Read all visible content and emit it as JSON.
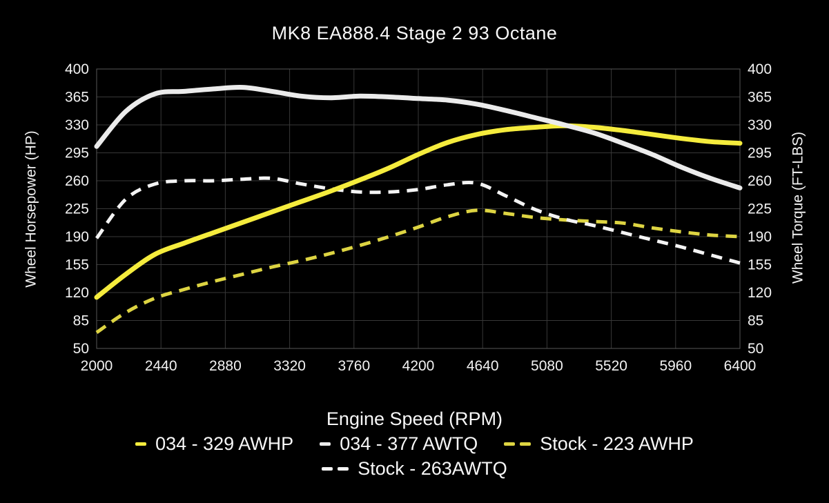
{
  "title": "MK8 EA888.4 Stage 2 93 Octane",
  "colors": {
    "background": "#000000",
    "grid": "#383838",
    "plot_border": "#575757",
    "text": "#f2f2f2",
    "accent_yellow": "#f5ec3d",
    "accent_yellow_dashed": "#ddd442",
    "accent_white": "#ebebeb",
    "accent_white_dashed": "#f4f4f4"
  },
  "chart_data": {
    "type": "line",
    "title": "MK8 EA888.4 Stage 2 93 Octane",
    "xlabel": "Engine Speed (RPM)",
    "ylabel_left": "Wheel Horsepower (HP)",
    "ylabel_right": "Wheel Torque (FT-LBS)",
    "xlim": [
      2000,
      6400
    ],
    "ylim": [
      50,
      400
    ],
    "x_ticks": [
      2000,
      2440,
      2880,
      3320,
      3760,
      4200,
      4640,
      5080,
      5520,
      5960,
      6400
    ],
    "y_ticks": [
      400,
      365,
      330,
      295,
      260,
      225,
      190,
      155,
      120,
      85,
      50
    ],
    "grid": true,
    "legend_position": "bottom",
    "legend_rows": [
      [
        0,
        1,
        2
      ],
      [
        3
      ]
    ],
    "x_step": 200,
    "series": [
      {
        "name": "034 - 329 AWHP",
        "axis": "left",
        "style": "solid",
        "color": "#f5ec3d",
        "peak": 329,
        "x": [
          2000,
          2200,
          2400,
          2600,
          2800,
          3000,
          3200,
          3400,
          3600,
          3800,
          4000,
          4200,
          4400,
          4600,
          4800,
          5000,
          5200,
          5400,
          5600,
          5800,
          6000,
          6200,
          6400
        ],
        "values": [
          114,
          143,
          168,
          182,
          195,
          208,
          221,
          234,
          247,
          261,
          276,
          293,
          308,
          318,
          324,
          327,
          329,
          327,
          323,
          318,
          313,
          309,
          307
        ]
      },
      {
        "name": "034 - 377 AWTQ",
        "axis": "right",
        "style": "solid",
        "color": "#ebebeb",
        "peak": 377,
        "x": [
          2000,
          2200,
          2400,
          2600,
          2800,
          3000,
          3200,
          3400,
          3600,
          3800,
          4000,
          4200,
          4400,
          4600,
          4800,
          5000,
          5200,
          5400,
          5600,
          5800,
          6000,
          6200,
          6400
        ],
        "values": [
          303,
          347,
          369,
          372,
          375,
          377,
          372,
          366,
          364,
          366,
          365,
          363,
          361,
          356,
          348,
          339,
          330,
          320,
          307,
          293,
          277,
          263,
          251
        ]
      },
      {
        "name": "Stock - 223 AWHP",
        "axis": "left",
        "style": "dashed",
        "color": "#ddd442",
        "peak": 223,
        "x": [
          2000,
          2200,
          2400,
          2600,
          2800,
          3000,
          3200,
          3400,
          3600,
          3800,
          4000,
          4200,
          4400,
          4600,
          4800,
          5000,
          5200,
          5400,
          5600,
          5800,
          6000,
          6200,
          6400
        ],
        "values": [
          70,
          95,
          113,
          124,
          134,
          143,
          152,
          160,
          169,
          179,
          190,
          202,
          215,
          223,
          219,
          214,
          211,
          209,
          207,
          201,
          196,
          192,
          190
        ]
      },
      {
        "name": "Stock - 263AWTQ",
        "axis": "right",
        "style": "dashed",
        "color": "#f4f4f4",
        "peak": 263,
        "x": [
          2000,
          2200,
          2400,
          2600,
          2800,
          3000,
          3200,
          3400,
          3600,
          3800,
          4000,
          4200,
          4400,
          4600,
          4800,
          5000,
          5200,
          5400,
          5600,
          5800,
          6000,
          6200,
          6400
        ],
        "values": [
          188,
          237,
          256,
          260,
          260,
          262,
          263,
          256,
          250,
          246,
          246,
          249,
          255,
          257,
          241,
          224,
          212,
          204,
          195,
          186,
          177,
          167,
          157
        ]
      }
    ]
  }
}
